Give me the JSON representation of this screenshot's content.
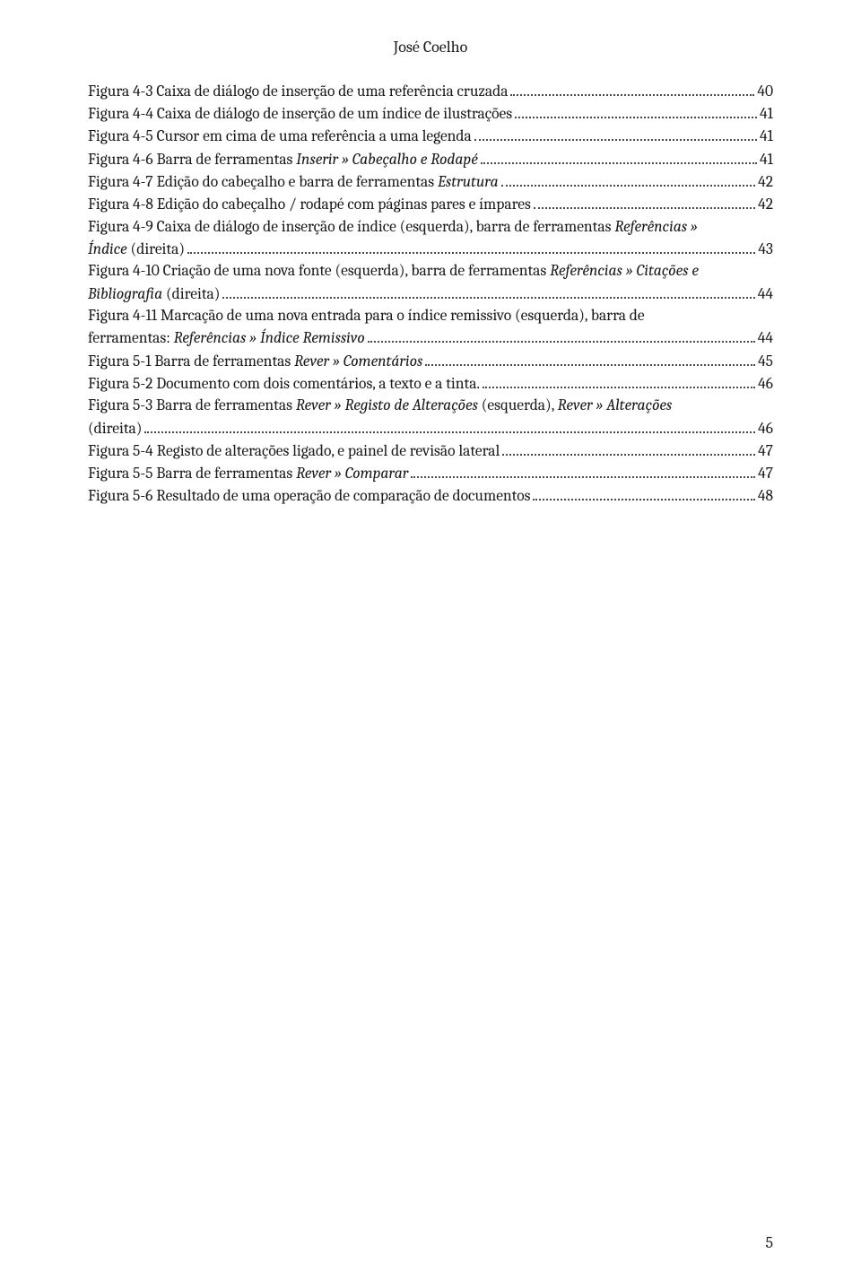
{
  "author": "José Coelho",
  "pageNumber": "5",
  "entries": [
    {
      "kind": "simple",
      "parts": [
        {
          "t": "Figura 4-3 Caixa de diálogo de inserção de uma referência cruzada"
        }
      ],
      "page": "40"
    },
    {
      "kind": "simple",
      "parts": [
        {
          "t": "Figura 4-4 Caixa de diálogo de inserção de um índice de ilustrações"
        }
      ],
      "page": "41"
    },
    {
      "kind": "simple",
      "parts": [
        {
          "t": "Figura 4-5 Cursor em cima de uma referência a uma legenda"
        }
      ],
      "page": "41"
    },
    {
      "kind": "simple",
      "parts": [
        {
          "t": "Figura 4-6 Barra de ferramentas "
        },
        {
          "t": "Inserir » Cabeçalho e Rodapé",
          "i": true
        }
      ],
      "page": "41"
    },
    {
      "kind": "simple",
      "parts": [
        {
          "t": "Figura 4-7 Edição do cabeçalho e barra de ferramentas "
        },
        {
          "t": "Estrutura",
          "i": true
        }
      ],
      "page": "42"
    },
    {
      "kind": "simple",
      "parts": [
        {
          "t": "Figura 4-8 Edição do cabeçalho / rodapé com páginas pares e ímpares"
        }
      ],
      "page": "42"
    },
    {
      "kind": "multi",
      "lines": [
        [
          {
            "t": "Figura 4-9 Caixa de diálogo de inserção de índice (esquerda), barra de ferramentas "
          },
          {
            "t": "Referências »",
            "i": true
          }
        ]
      ],
      "lastParts": [
        {
          "t": "Índice",
          "i": true
        },
        {
          "t": " (direita)"
        }
      ],
      "page": "43"
    },
    {
      "kind": "multi",
      "lines": [
        [
          {
            "t": "Figura 4-10 Criação de uma nova fonte (esquerda), barra de ferramentas "
          },
          {
            "t": "Referências » Citações e",
            "i": true
          }
        ]
      ],
      "lastParts": [
        {
          "t": "Bibliografia",
          "i": true
        },
        {
          "t": " (direita)"
        }
      ],
      "page": "44"
    },
    {
      "kind": "multi",
      "lines": [
        [
          {
            "t": "Figura 4-11 Marcação de uma nova entrada para o índice remissivo (esquerda), barra de"
          }
        ]
      ],
      "lastParts": [
        {
          "t": "ferramentas: "
        },
        {
          "t": "Referências » Índice Remissivo",
          "i": true
        }
      ],
      "page": "44"
    },
    {
      "kind": "simple",
      "parts": [
        {
          "t": "Figura 5-1 Barra de ferramentas "
        },
        {
          "t": "Rever » Comentários",
          "i": true
        }
      ],
      "page": "45"
    },
    {
      "kind": "simple",
      "parts": [
        {
          "t": "Figura 5-2 Documento com dois comentários, a texto e a tinta."
        }
      ],
      "page": "46"
    },
    {
      "kind": "multi",
      "lines": [
        [
          {
            "t": "Figura 5-3 Barra de ferramentas "
          },
          {
            "t": "Rever » Registo de Alterações",
            "i": true
          },
          {
            "t": " (esquerda), "
          },
          {
            "t": "Rever » Alterações",
            "i": true
          }
        ]
      ],
      "lastParts": [
        {
          "t": "(direita)"
        }
      ],
      "page": "46"
    },
    {
      "kind": "simple",
      "parts": [
        {
          "t": "Figura 5-4 Registo de alterações ligado, e painel de revisão lateral"
        }
      ],
      "page": "47"
    },
    {
      "kind": "simple",
      "parts": [
        {
          "t": "Figura 5-5 Barra de ferramentas "
        },
        {
          "t": "Rever » Comparar",
          "i": true
        }
      ],
      "page": "47"
    },
    {
      "kind": "simple",
      "parts": [
        {
          "t": "Figura 5-6 Resultado de uma operação de comparação de documentos"
        }
      ],
      "page": "48"
    }
  ]
}
